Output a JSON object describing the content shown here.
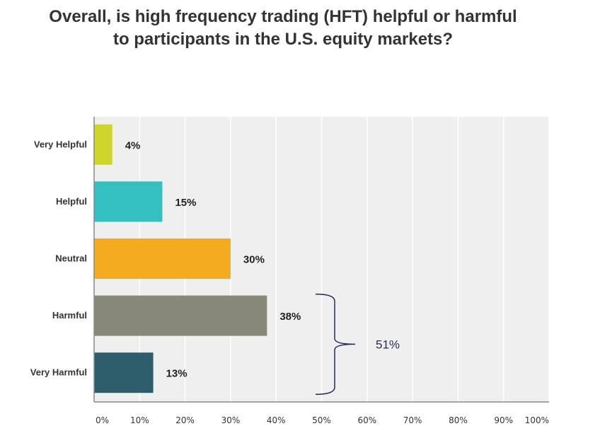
{
  "title": "Overall, is high frequency trading (HFT) helpful or harmful to participants in the U.S. equity markets?",
  "colors": {
    "plot_background": "#efefef",
    "gridline": "#ffffff",
    "axis": "#8a8a8a",
    "bracket": "#1e2f5e"
  },
  "chart_data": {
    "type": "bar",
    "orientation": "horizontal",
    "title": "Overall, is high frequency trading (HFT) helpful or harmful to participants in the U.S. equity markets?",
    "categories": [
      "Very Helpful",
      "Helpful",
      "Neutral",
      "Harmful",
      "Very Harmful"
    ],
    "values": [
      4,
      15,
      30,
      38,
      13
    ],
    "data_labels": [
      "4%",
      "15%",
      "30%",
      "38%",
      "13%"
    ],
    "bar_colors": [
      "#cfd52a",
      "#34bfc0",
      "#f4ab1f",
      "#888878",
      "#2e5e6c"
    ],
    "xlim": [
      0,
      100
    ],
    "x_ticks": [
      0,
      10,
      20,
      30,
      40,
      50,
      60,
      70,
      80,
      90,
      100
    ],
    "x_tick_labels": [
      "0%",
      "10%",
      "20%",
      "30%",
      "40%",
      "50%",
      "60%",
      "70%",
      "80%",
      "90%",
      "100%"
    ],
    "grid": true,
    "legend": "none",
    "annotation": {
      "type": "bracket",
      "spans": [
        "Harmful",
        "Very Harmful"
      ],
      "label": "51%"
    }
  }
}
